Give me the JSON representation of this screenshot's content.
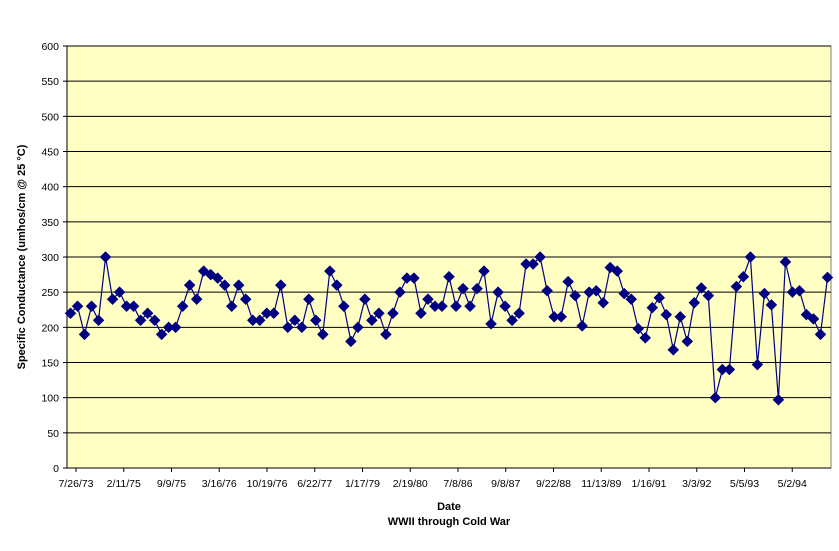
{
  "chart_data": {
    "type": "line",
    "title": "",
    "xlabel": "Date",
    "subtitle": "WWII through Cold War",
    "ylabel": "Specific Conductance (umhos/cm @ 25 °C)",
    "ylim": [
      0,
      600
    ],
    "ytick_step": 50,
    "grid": "horizontal",
    "legend": "none",
    "colors": {
      "plot_background": "#ffffc4",
      "series": "#000080",
      "grid": "#000000"
    },
    "x_tick_labels": [
      "7/26/73",
      "2/11/75",
      "9/9/75",
      "3/16/76",
      "10/19/76",
      "6/22/77",
      "1/17/79",
      "2/19/80",
      "7/8/86",
      "9/8/87",
      "9/22/88",
      "11/13/89",
      "1/16/91",
      "3/3/92",
      "5/5/93",
      "5/2/94"
    ],
    "series": [
      {
        "marker": "diamond",
        "values": [
          220,
          230,
          190,
          230,
          210,
          300,
          240,
          250,
          230,
          230,
          210,
          220,
          210,
          190,
          200,
          200,
          230,
          260,
          240,
          280,
          275,
          270,
          260,
          230,
          260,
          240,
          210,
          210,
          220,
          220,
          260,
          200,
          210,
          200,
          240,
          210,
          190,
          280,
          260,
          230,
          180,
          200,
          240,
          210,
          220,
          190,
          220,
          250,
          270,
          270,
          220,
          240,
          230,
          230,
          272,
          230,
          255,
          230,
          255,
          280,
          205,
          250,
          230,
          210,
          220,
          290,
          290,
          300,
          252,
          215,
          215,
          265,
          245,
          202,
          250,
          252,
          235,
          285,
          280,
          248,
          240,
          198,
          185,
          228,
          242,
          218,
          168,
          215,
          180,
          235,
          256,
          245,
          100,
          140,
          140,
          258,
          272,
          300,
          147,
          248,
          232,
          97,
          293,
          250,
          252,
          218,
          212,
          190,
          271
        ]
      }
    ]
  }
}
